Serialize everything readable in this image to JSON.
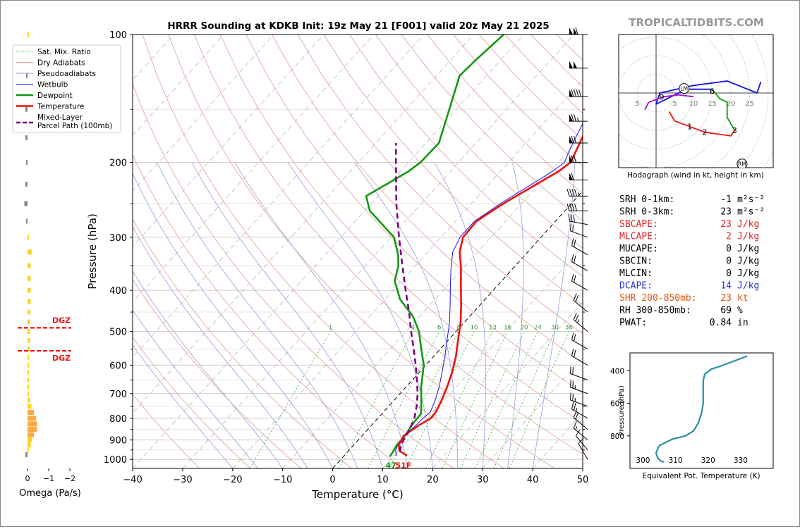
{
  "title": "HRRR Sounding at KDKB Init: 19z May 21 [F001] valid 20z May 21 2025",
  "watermark": "TROPICALTIDBITS.COM",
  "chart_data": [
    {
      "type": "line",
      "name": "skewt",
      "xlabel": "Temperature (°C)",
      "ylabel": "Pressure (hPa)",
      "xlim": [
        -40,
        50
      ],
      "ylim": [
        1050,
        100
      ],
      "log_y": true,
      "skew": true,
      "x_ticks": [
        -40,
        -30,
        -20,
        -10,
        0,
        10,
        20,
        30,
        40,
        50
      ],
      "x_tick_labels": [
        "−40",
        "−30",
        "−20",
        "−10",
        "0",
        "10",
        "20",
        "30",
        "40",
        "50"
      ],
      "y_ticks": [
        100,
        200,
        300,
        400,
        500,
        600,
        700,
        800,
        900,
        1000
      ],
      "legend": {
        "placement": "top-left",
        "entries": [
          "Sat. Mix. Ratio",
          "Dry Adiabats",
          "Pseudoadiabats",
          "Wetbulb",
          "Dewpoint",
          "Temperature",
          "Mixed-Layer\nParcel Path (100mb)"
        ]
      },
      "colors": {
        "temperature": "#ee1111",
        "dewpoint": "#119911",
        "wetbulb": "#1111ee",
        "parcel": "#800080",
        "isotherm_zero": "#000000"
      },
      "mixing_ratio_labels": [
        "1",
        "4",
        "6",
        "8",
        "10",
        "13",
        "16",
        "20",
        "24",
        "30",
        "36"
      ],
      "mixing_ratio_values": [
        1,
        4,
        6,
        8,
        10,
        13,
        16,
        20,
        24,
        30,
        36
      ],
      "surface_dewpoint_label": "47",
      "surface_temperature_label": "51F",
      "series": [
        {
          "name": "Temperature",
          "points": [
            [
              12.6,
              980
            ],
            [
              10.2,
              955
            ],
            [
              9.0,
              925
            ],
            [
              8.3,
              880
            ],
            [
              9.5,
              830
            ],
            [
              10.6,
              800
            ],
            [
              10.5,
              775
            ],
            [
              9.5,
              725
            ],
            [
              8.2,
              675
            ],
            [
              6.6,
              625
            ],
            [
              4.6,
              575
            ],
            [
              2.0,
              525
            ],
            [
              -0.8,
              475
            ],
            [
              -4.0,
              430
            ],
            [
              -7.3,
              390
            ],
            [
              -10.4,
              355
            ],
            [
              -13.6,
              325
            ],
            [
              -15.6,
              300
            ],
            [
              -15.8,
              275
            ],
            [
              -13.6,
              250
            ],
            [
              -8.4,
              210
            ],
            [
              -7.6,
              200
            ],
            [
              -8.8,
              185
            ],
            [
              -11.6,
              155
            ],
            [
              -14.6,
              130
            ],
            [
              -17.8,
              110
            ],
            [
              -20.6,
              100
            ]
          ]
        },
        {
          "name": "Dewpoint",
          "points": [
            [
              9.3,
              985
            ],
            [
              9.0,
              955
            ],
            [
              8.6,
              925
            ],
            [
              8.6,
              880
            ],
            [
              8.0,
              830
            ],
            [
              7.8,
              780
            ],
            [
              5.4,
              725
            ],
            [
              3.0,
              675
            ],
            [
              -0.4,
              600
            ],
            [
              -3.8,
              550
            ],
            [
              -7.4,
              500
            ],
            [
              -11.4,
              460
            ],
            [
              -17.0,
              420
            ],
            [
              -21.4,
              380
            ],
            [
              -23.4,
              350
            ],
            [
              -25.4,
              330
            ],
            [
              -29.4,
              300
            ],
            [
              -39.0,
              260
            ],
            [
              -42.4,
              240
            ],
            [
              -38.4,
              210
            ],
            [
              -37.6,
              200
            ],
            [
              -37.4,
              180
            ],
            [
              -41.4,
              150
            ],
            [
              -45.4,
              125
            ],
            [
              -45.0,
              115
            ],
            [
              -44.0,
              100
            ]
          ]
        },
        {
          "name": "Wetbulb",
          "points": [
            [
              10.5,
              980
            ],
            [
              9.4,
              955
            ],
            [
              8.8,
              925
            ],
            [
              8.4,
              880
            ],
            [
              8.9,
              830
            ],
            [
              9.0,
              800
            ],
            [
              9.4,
              775
            ],
            [
              8.2,
              725
            ],
            [
              6.6,
              675
            ],
            [
              4.6,
              625
            ],
            [
              2.4,
              575
            ],
            [
              -0.2,
              525
            ],
            [
              -3.0,
              475
            ],
            [
              -6.2,
              430
            ],
            [
              -9.4,
              390
            ],
            [
              -12.4,
              355
            ],
            [
              -15.0,
              325
            ],
            [
              -16.2,
              300
            ],
            [
              -16.2,
              275
            ],
            [
              -14.2,
              250
            ],
            [
              -9.6,
              210
            ],
            [
              -8.8,
              200
            ],
            [
              -10.2,
              185
            ],
            [
              -12.8,
              155
            ],
            [
              -15.6,
              130
            ],
            [
              -18.6,
              110
            ],
            [
              -21.4,
              100
            ]
          ]
        },
        {
          "name": "Mixed-Layer Parcel Path (100mb)",
          "points": [
            [
              10.5,
              960
            ],
            [
              9.4,
              925
            ],
            [
              8.8,
              880
            ],
            [
              8.6,
              860
            ],
            [
              7.3,
              800
            ],
            [
              5.6,
              750
            ],
            [
              3.5,
              700
            ],
            [
              0.9,
              650
            ],
            [
              -2.0,
              600
            ],
            [
              -5.3,
              550
            ],
            [
              -9.0,
              500
            ],
            [
              -12.9,
              450
            ],
            [
              -17.5,
              400
            ],
            [
              -22.6,
              350
            ],
            [
              -28.4,
              300
            ],
            [
              -35.0,
              250
            ],
            [
              -42.5,
              200
            ],
            [
              -46.0,
              180
            ]
          ]
        }
      ],
      "dgz_levels": [
        {
          "label": "DGZ",
          "p": 490
        },
        {
          "label": "DGZ",
          "p": 555
        }
      ]
    },
    {
      "type": "bar",
      "name": "omega",
      "xlabel": "Omega (Pa/s)",
      "x_ticks": [
        0,
        -1,
        -2
      ],
      "x_tick_labels": [
        "0",
        "−1",
        "−2"
      ],
      "levels": [
        100,
        125,
        150,
        175,
        200,
        225,
        250,
        275,
        300,
        325,
        350,
        375,
        400,
        425,
        450,
        475,
        500,
        525,
        550,
        575,
        600,
        625,
        650,
        675,
        700,
        725,
        750,
        775,
        800,
        825,
        850,
        875,
        900,
        925,
        950,
        975
      ],
      "values": [
        0.0,
        0.05,
        0.1,
        0.1,
        0.05,
        0.1,
        0.15,
        0.05,
        -0.05,
        -0.2,
        -0.15,
        -0.15,
        -0.15,
        -0.15,
        -0.12,
        -0.12,
        -0.12,
        -0.12,
        -0.1,
        -0.08,
        -0.08,
        -0.05,
        -0.02,
        -0.02,
        -0.05,
        -0.12,
        -0.18,
        -0.3,
        -0.4,
        -0.45,
        -0.45,
        -0.3,
        -0.2,
        -0.15,
        -0.05,
        0.1
      ],
      "colors": {
        "negative": "#ffd21e",
        "strong_negative": "#ffa940",
        "positive": "#888888"
      }
    },
    {
      "type": "line",
      "name": "hodograph",
      "xlabel": "Hodograph (wind in kt, height in km)",
      "ring_labels": [
        "5",
        "5",
        "10",
        "15",
        "20",
        "25"
      ],
      "ring_values": [
        -5,
        5,
        10,
        15,
        20,
        25
      ],
      "segments": [
        {
          "color": "#ee1111",
          "points": [
            [
              3.5,
              -5
            ],
            [
              5,
              -7.5
            ],
            [
              9,
              -9
            ],
            [
              13,
              -10.5
            ],
            [
              20,
              -11.5
            ],
            [
              21,
              -10
            ]
          ]
        },
        {
          "color": "#119911",
          "points": [
            [
              21,
              -10
            ],
            [
              19,
              -6.5
            ],
            [
              19,
              -2.5
            ],
            [
              17,
              -1.5
            ],
            [
              15,
              1
            ]
          ]
        },
        {
          "color": "#1111ee",
          "points": [
            [
              15,
              1
            ],
            [
              8,
              1
            ],
            [
              0,
              -3
            ],
            [
              1,
              0
            ],
            [
              10,
              2
            ],
            [
              19,
              3.2
            ],
            [
              27,
              0
            ],
            [
              28,
              3
            ]
          ]
        },
        {
          "color": "#aa11cc",
          "points": [
            [
              -3,
              -4.5
            ],
            [
              -2,
              -2.5
            ],
            [
              2,
              -1
            ],
            [
              6,
              -0.5
            ],
            [
              10,
              -1
            ]
          ]
        }
      ],
      "height_labels": [
        {
          "label": "1",
          "u": 9,
          "v": -9
        },
        {
          "label": "2",
          "u": 13,
          "v": -10.5
        },
        {
          "label": "3",
          "u": 21,
          "v": -10
        },
        {
          "label": "6",
          "u": 15,
          "v": 0.5
        },
        {
          "label": "9",
          "u": 1.5,
          "v": -1
        }
      ],
      "storm_markers": [
        {
          "label": "LM",
          "u": 7.5,
          "v": 1.2
        },
        {
          "label": "RM",
          "u": 23,
          "v": -19
        }
      ]
    },
    {
      "type": "line",
      "name": "theta_e",
      "xlabel": "Equivalent Pot. Temperature (K)",
      "ylabel": "Pressure (hPa)",
      "x_ticks": [
        300,
        310,
        320,
        330
      ],
      "y_ticks": [
        400,
        600,
        800
      ],
      "xlim": [
        296,
        340
      ],
      "ylim": [
        1000,
        290
      ],
      "color": "#2a8fa8",
      "points": [
        [
          306.5,
          960
        ],
        [
          305.5,
          955
        ],
        [
          304.5,
          935
        ],
        [
          304,
          905
        ],
        [
          305,
          860
        ],
        [
          309,
          820
        ],
        [
          313,
          800
        ],
        [
          315.5,
          770
        ],
        [
          317,
          720
        ],
        [
          318,
          660
        ],
        [
          318.5,
          600
        ],
        [
          318.5,
          520
        ],
        [
          318.5,
          460
        ],
        [
          319,
          420
        ],
        [
          321,
          390
        ],
        [
          324,
          370
        ],
        [
          328,
          340
        ],
        [
          332,
          310
        ]
      ]
    }
  ],
  "wind_barbs": [
    {
      "p": 100,
      "dir": 270,
      "spd": 110
    },
    {
      "p": 120,
      "dir": 270,
      "spd": 100
    },
    {
      "p": 140,
      "dir": 270,
      "spd": 90
    },
    {
      "p": 160,
      "dir": 270,
      "spd": 75
    },
    {
      "p": 180,
      "dir": 270,
      "spd": 70
    },
    {
      "p": 200,
      "dir": 270,
      "spd": 70
    },
    {
      "p": 220,
      "dir": 270,
      "spd": 60
    },
    {
      "p": 240,
      "dir": 270,
      "spd": 45
    },
    {
      "p": 260,
      "dir": 270,
      "spd": 40
    },
    {
      "p": 280,
      "dir": 280,
      "spd": 30
    },
    {
      "p": 300,
      "dir": 290,
      "spd": 20
    },
    {
      "p": 330,
      "dir": 300,
      "spd": 20
    },
    {
      "p": 360,
      "dir": 300,
      "spd": 20
    },
    {
      "p": 400,
      "dir": 300,
      "spd": 20
    },
    {
      "p": 450,
      "dir": 310,
      "spd": 20
    },
    {
      "p": 500,
      "dir": 310,
      "spd": 25
    },
    {
      "p": 550,
      "dir": 300,
      "spd": 20
    },
    {
      "p": 600,
      "dir": 300,
      "spd": 20
    },
    {
      "p": 650,
      "dir": 290,
      "spd": 20
    },
    {
      "p": 700,
      "dir": 290,
      "spd": 25
    },
    {
      "p": 750,
      "dir": 290,
      "spd": 25
    },
    {
      "p": 800,
      "dir": 300,
      "spd": 25
    },
    {
      "p": 850,
      "dir": 310,
      "spd": 20
    },
    {
      "p": 900,
      "dir": 310,
      "spd": 15
    },
    {
      "p": 950,
      "dir": 320,
      "spd": 10
    },
    {
      "p": 1000,
      "dir": 330,
      "spd": 10
    }
  ],
  "indices": [
    {
      "label": "SRH 0-1km:",
      "value": "-1",
      "unit": "m²s⁻²",
      "color": "#000000"
    },
    {
      "label": "SRH 0-3km:",
      "value": "23",
      "unit": "m²s⁻²",
      "color": "#000000"
    },
    {
      "label": "SBCAPE:",
      "value": "23",
      "unit": "J/kg",
      "color": "#dd2222"
    },
    {
      "label": "MLCAPE:",
      "value": "2",
      "unit": "J/kg",
      "color": "#dd2222"
    },
    {
      "label": "MUCAPE:",
      "value": "0",
      "unit": "J/kg",
      "color": "#000000"
    },
    {
      "label": "SBCIN:",
      "value": "0",
      "unit": "J/kg",
      "color": "#000000"
    },
    {
      "label": "MLCIN:",
      "value": "0",
      "unit": "J/kg",
      "color": "#000000"
    },
    {
      "label": "DCAPE:",
      "value": "14",
      "unit": "J/kg",
      "color": "#2233dd"
    },
    {
      "label": "SHR 200-850mb:",
      "value": "23",
      "unit": "kt",
      "color": "#dd5511"
    },
    {
      "label": "RH 300-850mb:",
      "value": "69",
      "unit": "%",
      "color": "#000000"
    },
    {
      "label": "PWAT:",
      "value": "0.84",
      "unit": "in",
      "color": "#000000"
    }
  ]
}
